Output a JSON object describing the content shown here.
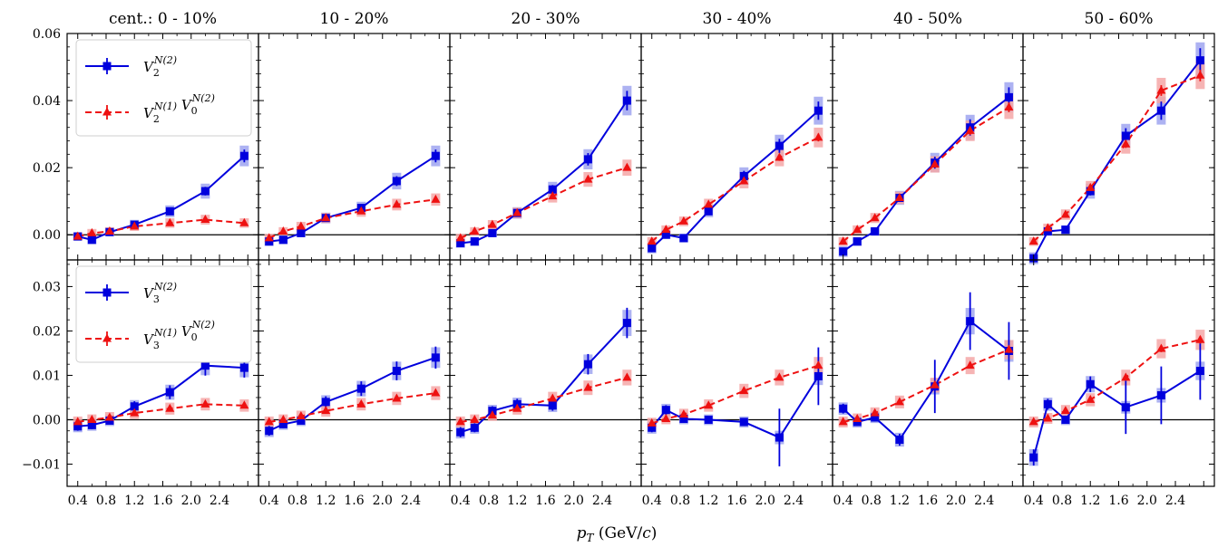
{
  "chart_data": {
    "type": "line",
    "xlabel": "p_T (GeV/c)",
    "x": [
      0.4,
      0.6,
      0.85,
      1.2,
      1.7,
      2.2,
      2.75
    ],
    "xlim": [
      0.25,
      2.95
    ],
    "xticks": [
      "0.4",
      "0.8",
      "1.2",
      "1.6",
      "2.0",
      "2.4"
    ],
    "columns": [
      "cent.: 0 - 10%",
      "10 - 20%",
      "20 - 30%",
      "30 - 40%",
      "40 - 50%",
      "50 - 60%"
    ],
    "colors": {
      "blue": "#0000dd",
      "red": "#ee1111",
      "blue_sys": "#9fa4f0",
      "red_sys": "#f5a7a7"
    },
    "rows": [
      {
        "ylim": [
          -0.0075,
          0.06
        ],
        "yticks": [
          "0.06",
          "0.04",
          "0.02",
          "0.00"
        ],
        "legend": [
          "V_2^{N(2)}",
          "V_2^{N(1)} V_0^{N(2)}"
        ],
        "series": [
          {
            "values": [
              [
                -0.0005,
                -0.0015,
                0.0008,
                0.003,
                0.007,
                0.013,
                0.0235
              ],
              [
                -0.002,
                -0.0015,
                0.0005,
                0.005,
                0.008,
                0.016,
                0.0235
              ],
              [
                -0.0025,
                -0.002,
                0.0005,
                0.0065,
                0.0135,
                0.0225,
                0.04
              ],
              [
                -0.004,
                0.0,
                -0.001,
                0.007,
                0.0175,
                0.0265,
                0.037
              ],
              [
                -0.005,
                -0.002,
                0.001,
                0.011,
                0.0215,
                0.032,
                0.041
              ],
              [
                -0.007,
                0.001,
                0.0015,
                0.013,
                0.0295,
                0.037,
                0.052
              ]
            ]
          },
          {
            "values": [
              [
                -0.0005,
                0.0005,
                0.001,
                0.0025,
                0.0035,
                0.0045,
                0.0035
              ],
              [
                -0.001,
                0.001,
                0.0025,
                0.005,
                0.007,
                0.009,
                0.0105
              ],
              [
                -0.001,
                0.001,
                0.003,
                0.0065,
                0.0115,
                0.0165,
                0.02
              ],
              [
                -0.002,
                0.0015,
                0.004,
                0.009,
                0.016,
                0.023,
                0.029
              ],
              [
                -0.002,
                0.0015,
                0.005,
                0.011,
                0.021,
                0.031,
                0.038
              ],
              [
                -0.002,
                0.002,
                0.006,
                0.014,
                0.027,
                0.043,
                0.0475
              ]
            ]
          }
        ]
      },
      {
        "ylim": [
          -0.015,
          0.036
        ],
        "yticks": [
          "0.03",
          "0.02",
          "0.01",
          "0.00",
          "−0.01"
        ],
        "legend": [
          "V_3^{N(2)}",
          "V_3^{N(1)} V_0^{N(2)}"
        ],
        "series": [
          {
            "values": [
              [
                -0.0015,
                -0.0012,
                -0.0002,
                0.003,
                0.0062,
                0.0122,
                0.0117
              ],
              [
                -0.0025,
                -0.001,
                -0.0002,
                0.004,
                0.007,
                0.011,
                0.014
              ],
              [
                -0.0028,
                -0.0018,
                0.002,
                0.0035,
                0.0032,
                0.0125,
                0.0218
              ],
              [
                -0.0018,
                0.0022,
                0.0002,
                0.0,
                -0.0005,
                -0.004,
                0.0098
              ],
              [
                0.0025,
                -0.0005,
                0.0005,
                -0.0045,
                0.0075,
                0.0222,
                0.0155
              ],
              [
                -0.0085,
                0.0035,
                0.0,
                0.008,
                0.0028,
                0.0055,
                0.011
              ]
            ]
          },
          {
            "values": [
              [
                -0.0005,
                0.0,
                0.0005,
                0.0015,
                0.0025,
                0.0035,
                0.0032
              ],
              [
                -0.0005,
                0.0,
                0.0008,
                0.002,
                0.0035,
                0.0048,
                0.006
              ],
              [
                -0.0005,
                0.0,
                0.001,
                0.0025,
                0.0048,
                0.0072,
                0.0095
              ],
              [
                -0.0008,
                0.0002,
                0.0012,
                0.0032,
                0.0065,
                0.0095,
                0.0122
              ],
              [
                -0.0005,
                0.0002,
                0.0015,
                0.004,
                0.0078,
                0.0122,
                0.0158
              ],
              [
                -0.0005,
                0.0003,
                0.002,
                0.0045,
                0.0095,
                0.016,
                0.018
              ]
            ]
          }
        ]
      }
    ]
  }
}
